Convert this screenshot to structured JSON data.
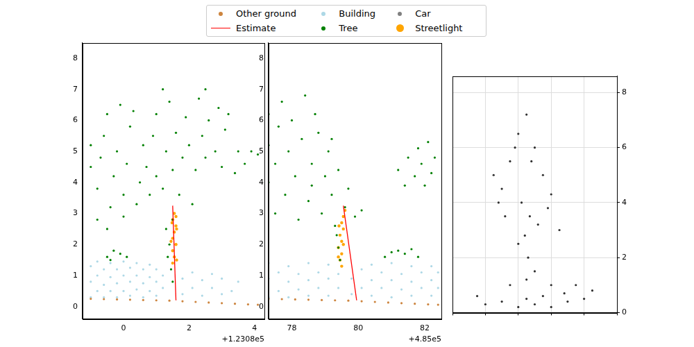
{
  "chart_data": [
    {
      "type": "scatter",
      "xlabel": "+1.2308e5",
      "legend": "upper center",
      "grid": false,
      "xlim": [
        -1.25,
        4.3
      ],
      "xticks": [
        0,
        2,
        4
      ],
      "ylim": [
        -0.4,
        8.5
      ],
      "yticks": [
        0,
        1,
        2,
        3,
        4,
        5,
        6,
        7,
        8
      ],
      "series": [
        {
          "name": "Other ground",
          "color": "#cd853f",
          "marker": "circle",
          "x": [
            -1,
            -0.6,
            -0.2,
            0.2,
            0.6,
            1.0,
            1.4,
            1.8,
            2.2,
            2.6,
            3.0,
            3.4,
            3.8,
            4.1
          ],
          "values": [
            0.25,
            0.24,
            0.23,
            0.22,
            0.21,
            0.2,
            0.19,
            0.17,
            0.15,
            0.13,
            0.11,
            0.09,
            0.07,
            0.06
          ]
        },
        {
          "name": "Estimate",
          "color": "#ff0000",
          "type": "line",
          "line_style": "solid",
          "marker": "none",
          "x": [
            1.5,
            1.6
          ],
          "values": [
            3.25,
            0.2
          ]
        },
        {
          "name": "Building",
          "color": "#add8e6",
          "marker": "circle",
          "x": [
            -1,
            -1,
            -1,
            -0.8,
            -0.8,
            -0.8,
            -0.6,
            -0.6,
            -0.6,
            -0.4,
            -0.4,
            -0.4,
            -0.2,
            -0.2,
            -0.2,
            0,
            0,
            0,
            0.2,
            0.2,
            0.2,
            0.4,
            0.4,
            0.4,
            0.6,
            0.6,
            0.6,
            0.8,
            0.8,
            0.8,
            1.0,
            1.0,
            1.0,
            1.2,
            1.2,
            1.8,
            1.8,
            2.1,
            2.1,
            2.4,
            2.4,
            2.7,
            2.7,
            3.0,
            3.0,
            3.3,
            3.5
          ],
          "values": [
            0.3,
            0.8,
            1.3,
            0.5,
            1.0,
            1.45,
            0.3,
            0.7,
            1.2,
            0.5,
            0.95,
            1.4,
            0.3,
            0.75,
            1.2,
            0.5,
            1.0,
            1.45,
            0.35,
            0.8,
            1.25,
            0.55,
            1.0,
            1.4,
            0.3,
            0.75,
            1.2,
            0.5,
            0.95,
            1.35,
            0.35,
            0.8,
            1.2,
            0.6,
            1.0,
            0.4,
            0.9,
            0.6,
            1.1,
            0.35,
            0.85,
            0.6,
            1.05,
            0.4,
            0.9,
            0.5,
            0.8
          ]
        },
        {
          "name": "Tree",
          "color": "#008000",
          "marker": "circle",
          "x": [
            -1,
            -1,
            -0.8,
            -0.7,
            -0.6,
            -0.5,
            -0.4,
            -0.3,
            -0.2,
            -0.1,
            0,
            0,
            0.1,
            0.2,
            0.3,
            0.4,
            0.5,
            0.6,
            0.7,
            0.8,
            0.9,
            1.0,
            1.0,
            1.2,
            1.3,
            1.4,
            1.5,
            1.6,
            1.7,
            1.8,
            1.9,
            2.0,
            2.1,
            2.2,
            2.3,
            2.4,
            2.5,
            2.6,
            2.8,
            2.9,
            3.0,
            3.1,
            3.2,
            3.4,
            3.5,
            3.7,
            3.9,
            4.1,
            1.5,
            1.3,
            1.4,
            1.35,
            1.45,
            1.5,
            -0.8,
            -0.5,
            -0.5,
            -0.3,
            -0.1,
            0.1,
            -0.4,
            1.2,
            2.5
          ],
          "values": [
            4.5,
            5.2,
            3.8,
            4.8,
            5.5,
            6.2,
            3.2,
            4.2,
            5.0,
            6.5,
            2.9,
            3.6,
            4.6,
            5.8,
            6.3,
            3.3,
            4.0,
            5.2,
            4.5,
            3.6,
            5.5,
            6.2,
            4.2,
            3.8,
            5.0,
            6.6,
            4.4,
            5.6,
            3.6,
            4.8,
            6.1,
            5.2,
            3.3,
            4.4,
            6.7,
            5.5,
            4.8,
            6.0,
            5.0,
            6.4,
            4.5,
            5.7,
            6.2,
            4.3,
            5.0,
            4.6,
            5.0,
            4.9,
            2.8,
            2.5,
            2.0,
            1.6,
            1.2,
            0.8,
            2.8,
            2.5,
            1.6,
            1.8,
            1.7,
            1.6,
            1.5,
            7.0,
            7.0
          ]
        },
        {
          "name": "Car",
          "color": "#808080",
          "marker": "circle",
          "x": [],
          "values": []
        },
        {
          "name": "Streetlight",
          "color": "#ffa500",
          "marker": "circle",
          "x": [
            1.5,
            1.55,
            1.5,
            1.6,
            1.5,
            1.55,
            1.6,
            1.5,
            1.55,
            1.62,
            1.45,
            1.62,
            1.48,
            1.6
          ],
          "values": [
            1.4,
            1.6,
            1.8,
            2.0,
            2.2,
            2.4,
            2.6,
            2.8,
            3.0,
            1.5,
            2.1,
            2.5,
            2.7,
            2.9
          ]
        }
      ]
    },
    {
      "type": "scatter",
      "xlabel": "+4.85e5",
      "grid": false,
      "xlim": [
        77.3,
        82.5
      ],
      "xticks": [
        78,
        80,
        82
      ],
      "ylim": [
        -0.4,
        8.5
      ],
      "yticks": [
        0,
        1,
        2,
        3,
        4,
        5,
        6,
        7,
        8
      ],
      "series": [
        {
          "name": "Other ground",
          "color": "#cd853f",
          "marker": "circle",
          "x": [
            77.3,
            77.7,
            78.1,
            78.5,
            78.9,
            79.3,
            79.7,
            80.1,
            80.5,
            80.9,
            81.3,
            81.7,
            82.1,
            82.4
          ],
          "values": [
            0.25,
            0.24,
            0.23,
            0.22,
            0.21,
            0.2,
            0.19,
            0.17,
            0.15,
            0.13,
            0.11,
            0.09,
            0.07,
            0.06
          ]
        },
        {
          "name": "Estimate",
          "color": "#ff0000",
          "type": "line",
          "line_style": "solid",
          "marker": "none",
          "x": [
            79.55,
            79.95
          ],
          "values": [
            3.25,
            0.2
          ]
        },
        {
          "name": "Building",
          "color": "#add8e6",
          "marker": "circle",
          "x": [
            77.3,
            77.3,
            77.3,
            77.6,
            77.6,
            77.9,
            77.9,
            77.9,
            78.2,
            78.2,
            78.5,
            78.5,
            78.5,
            78.8,
            78.8,
            79.1,
            79.1,
            79.1,
            79.4,
            79.4,
            79.8,
            79.8,
            80.1,
            80.1,
            80.4,
            80.4,
            80.4,
            80.7,
            80.7,
            81.0,
            81.0,
            81.0,
            81.3,
            81.3,
            81.6,
            81.6,
            81.6,
            81.9,
            81.9,
            82.2,
            82.2,
            82.2,
            82.4,
            82.4
          ],
          "values": [
            0.3,
            0.9,
            1.4,
            0.5,
            1.1,
            0.3,
            0.8,
            1.3,
            0.55,
            1.05,
            0.35,
            0.85,
            1.4,
            0.6,
            1.1,
            0.35,
            0.9,
            1.35,
            0.6,
            1.05,
            0.4,
            0.9,
            0.6,
            1.2,
            0.35,
            0.85,
            1.35,
            0.6,
            1.1,
            0.3,
            0.85,
            1.4,
            0.55,
            1.05,
            0.35,
            0.8,
            1.3,
            0.6,
            1.1,
            0.35,
            0.85,
            1.3,
            0.6,
            1.1
          ]
        },
        {
          "name": "Tree",
          "color": "#008000",
          "marker": "circle",
          "x": [
            77.3,
            77.3,
            77.3,
            77.5,
            77.5,
            77.6,
            77.7,
            77.8,
            77.9,
            78.0,
            78.1,
            78.2,
            78.3,
            78.4,
            78.5,
            78.6,
            78.7,
            78.8,
            78.9,
            79.0,
            79.1,
            79.2,
            79.3,
            79.4,
            79.6,
            79.7,
            79.9,
            80.1,
            79.2,
            78.6,
            79.4,
            79.35,
            79.45,
            81.2,
            81.4,
            81.5,
            81.7,
            81.8,
            81.9,
            82.0,
            82.1,
            82.2,
            82.3,
            80.8,
            81.0,
            81.2,
            81.4,
            81.6,
            81.8
          ],
          "values": [
            4.0,
            5.2,
            6.2,
            3.0,
            4.6,
            5.8,
            6.6,
            3.6,
            5.0,
            6.0,
            4.2,
            2.8,
            5.4,
            6.8,
            3.4,
            4.6,
            6.2,
            5.6,
            3.0,
            4.2,
            5.0,
            3.6,
            2.6,
            4.4,
            3.2,
            3.8,
            2.9,
            3.1,
            5.4,
            3.9,
            1.9,
            2.3,
            1.5,
            4.4,
            3.9,
            4.8,
            4.2,
            5.1,
            4.6,
            3.9,
            5.3,
            4.3,
            4.8,
            1.6,
            1.75,
            1.8,
            1.7,
            1.85,
            1.6
          ]
        },
        {
          "name": "Streetlight",
          "color": "#ffa500",
          "marker": "circle",
          "x": [
            79.5,
            79.45,
            79.5,
            79.4,
            79.5,
            79.45,
            79.55,
            79.5,
            79.55,
            79.6,
            79.4,
            79.55,
            79.42
          ],
          "values": [
            1.3,
            1.5,
            1.7,
            1.9,
            2.1,
            2.3,
            2.5,
            2.7,
            2.9,
            3.1,
            1.6,
            2.0,
            2.6
          ]
        }
      ]
    },
    {
      "type": "scatter",
      "grid": true,
      "tick_labels": "y",
      "xlim": [
        0,
        10
      ],
      "xticks": [
        0,
        2,
        4,
        6,
        8,
        10
      ],
      "ylim": [
        0,
        8.6
      ],
      "yticks": [
        0,
        2,
        4,
        6,
        8
      ],
      "series": [
        {
          "color": "#2f2f2f",
          "marker": "circle",
          "x": [
            4.5,
            4.5,
            4.6,
            4.4,
            4.7,
            3.0,
            3.5,
            4.0,
            4.5,
            5.0,
            5.5,
            6.0,
            3.2,
            2.5,
            4.2,
            5.2,
            4.8,
            3.8,
            5.8,
            6.5,
            2.8,
            4.0,
            5.0,
            3.5,
            6.0,
            2.0,
            3.0,
            4.0,
            5.0,
            6.0,
            7.0,
            8.0,
            8.5,
            7.5,
            1.5,
            5.5,
            6.8
          ],
          "values": [
            0.5,
            1.2,
            2.0,
            2.8,
            3.5,
            4.5,
            5.5,
            6.5,
            7.2,
            6.0,
            5.0,
            4.3,
            3.5,
            5.0,
            4.0,
            3.2,
            5.5,
            6.0,
            3.8,
            3.0,
            4.0,
            2.5,
            1.5,
            1.0,
            1.0,
            0.3,
            0.4,
            0.2,
            0.3,
            0.2,
            0.4,
            0.5,
            0.8,
            1.0,
            0.6,
            0.6,
            0.7
          ]
        }
      ]
    }
  ]
}
